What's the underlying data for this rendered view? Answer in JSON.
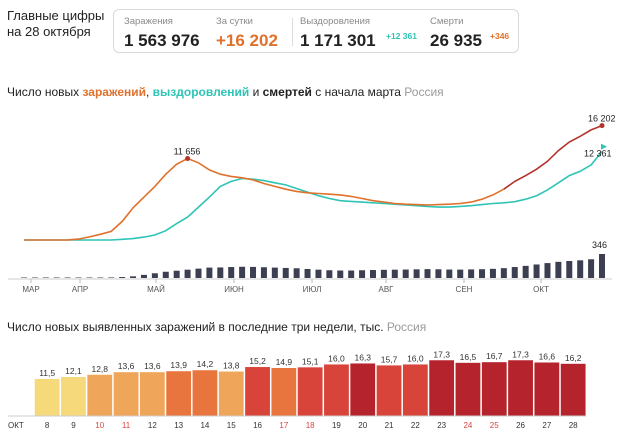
{
  "header": {
    "title_line1": "Главные цифры",
    "title_line2": "на 28 октября"
  },
  "stats": {
    "infections_label": "Заражения",
    "infections_value": "1 563 976",
    "daily_label": "За сутки",
    "daily_value": "+16 202",
    "recoveries_label": "Выздоровления",
    "recoveries_value": "1 171 301",
    "recoveries_delta": "+12 361",
    "deaths_label": "Смерти",
    "deaths_value": "26 935",
    "deaths_delta": "+346"
  },
  "colors": {
    "infections": "#e0712c",
    "infections_late": "#b3322a",
    "recoveries": "#2ec4b6",
    "deaths_bars": "#3c3f52",
    "bar_gradient": [
      "#f5d97b",
      "#f0a65a",
      "#e7753d",
      "#d9443a",
      "#b5232c"
    ]
  },
  "chart_data": [
    {
      "type": "line",
      "title_parts": [
        "Число новых ",
        "заражений",
        ", ",
        "выздоровлений",
        " и ",
        "смертей",
        " с начала марта"
      ],
      "region": "Россия",
      "x_ticks": [
        "МАР",
        "АПР",
        "МАЙ",
        "ИЮН",
        "ИЮЛ",
        "АВГ",
        "СЕН",
        "ОКТ"
      ],
      "grid": false,
      "annotations": [
        {
          "label": "11 656",
          "series": "infections",
          "date": "11 май"
        },
        {
          "label": "16 202",
          "series": "infections",
          "date": "28 окт"
        },
        {
          "label": "12 361",
          "series": "recoveries",
          "date": "28 окт"
        },
        {
          "label": "346",
          "series": "deaths",
          "date": "28 окт"
        }
      ],
      "series": [
        {
          "key": "infections",
          "x_start": "1 мар",
          "x_step_days": 7,
          "values": [
            0,
            0,
            0,
            1,
            10,
            120,
            430,
            800,
            1200,
            2600,
            4500,
            6000,
            7500,
            9200,
            10600,
            11400,
            10800,
            9800,
            9200,
            8900,
            8700,
            8400,
            7900,
            7500,
            7100,
            6800,
            6600,
            6500,
            6400,
            6300,
            6100,
            5800,
            5500,
            5300,
            5100,
            5000,
            4950,
            4900,
            4950,
            5000,
            5100,
            5300,
            5700,
            6300,
            7100,
            8200,
            9000,
            9900,
            11000,
            12500,
            13700,
            14500,
            15400,
            16000
          ]
        },
        {
          "key": "recoveries",
          "x_start": "1 мар",
          "x_step_days": 7,
          "values": [
            0,
            0,
            0,
            0,
            0,
            0,
            0,
            0,
            0,
            100,
            200,
            400,
            700,
            1300,
            2300,
            3200,
            4600,
            6000,
            7500,
            8200,
            8600,
            8500,
            8300,
            8000,
            7700,
            7200,
            6700,
            6200,
            5800,
            5500,
            5400,
            5300,
            5200,
            5100,
            5000,
            4900,
            4800,
            4700,
            4600,
            4600,
            4700,
            4800,
            4950,
            5100,
            5200,
            5350,
            5700,
            6200,
            7000,
            8000,
            9000,
            9600,
            10500,
            12361
          ]
        },
        {
          "key": "deaths",
          "x_start": "1 мар",
          "x_step_days": 7,
          "values": [
            0,
            0,
            0,
            0,
            0,
            0,
            2,
            5,
            8,
            14,
            24,
            45,
            68,
            90,
            105,
            120,
            135,
            150,
            152,
            158,
            162,
            160,
            155,
            150,
            145,
            140,
            130,
            120,
            112,
            108,
            108,
            112,
            115,
            118,
            120,
            122,
            125,
            128,
            126,
            122,
            121,
            124,
            127,
            132,
            142,
            158,
            175,
            195,
            215,
            233,
            245,
            255,
            270,
            346
          ]
        }
      ]
    },
    {
      "type": "bar",
      "title": "Число новых выявленных заражений в последние три недели, тыс.",
      "region": "Россия",
      "x_prefix": "ОКТ",
      "categories": [
        "8",
        "9",
        "10",
        "11",
        "12",
        "13",
        "14",
        "15",
        "16",
        "17",
        "18",
        "19",
        "20",
        "21",
        "22",
        "23",
        "24",
        "25",
        "26",
        "27",
        "28"
      ],
      "values": [
        11.5,
        12.1,
        12.8,
        13.6,
        13.6,
        13.9,
        14.2,
        13.8,
        15.2,
        14.9,
        15.1,
        16.0,
        16.3,
        15.7,
        16.0,
        17.3,
        16.5,
        16.7,
        17.3,
        16.6,
        16.2
      ],
      "value_labels": [
        "11,5",
        "12,1",
        "12,8",
        "13,6",
        "13,6",
        "13,9",
        "14,2",
        "13,8",
        "15,2",
        "14,9",
        "15,1",
        "16,0",
        "16,3",
        "15,7",
        "16,0",
        "17,3",
        "16,5",
        "16,7",
        "17,3",
        "16,6",
        "16,2"
      ],
      "weekend_categories": [
        "10",
        "11",
        "17",
        "18",
        "24",
        "25"
      ],
      "ylim": [
        0,
        18
      ]
    }
  ]
}
